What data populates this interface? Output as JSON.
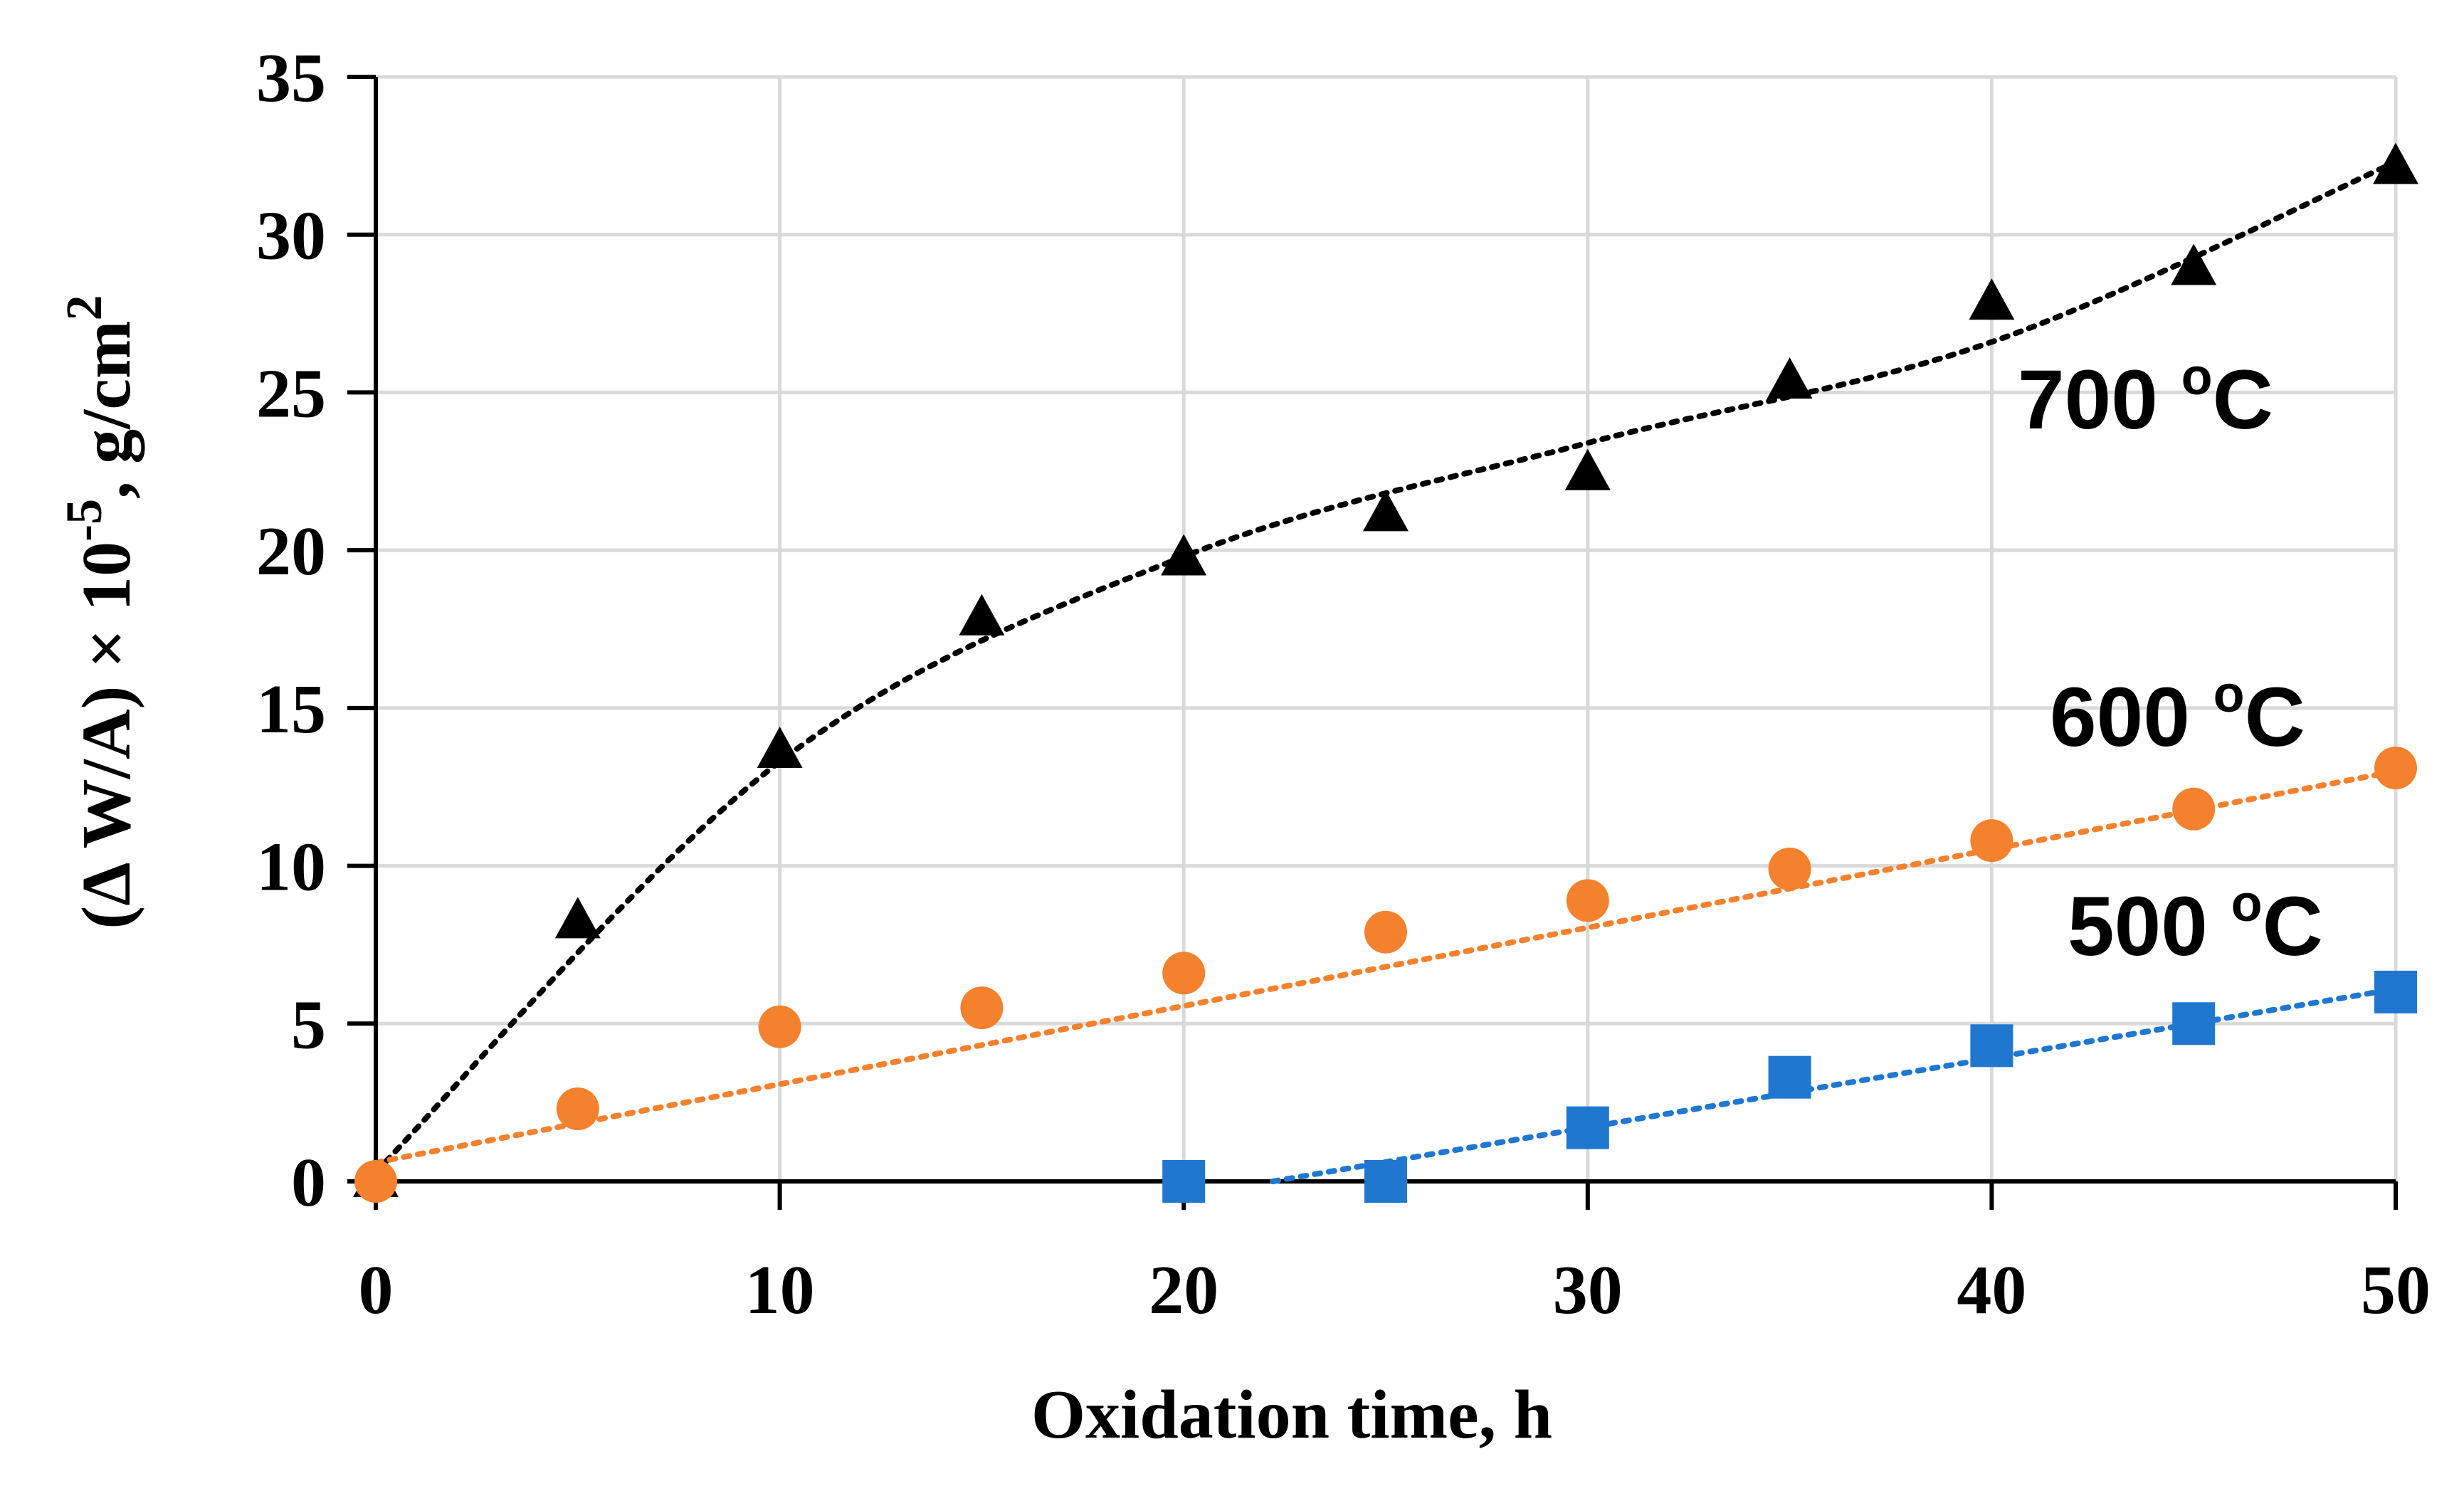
{
  "chart_data": {
    "type": "scatter",
    "xlabel": "Oxidation time, h",
    "ylabel": {
      "prefix": "(Δ W/A) × 10",
      "exp1": "-5",
      "mid": ", g/cm",
      "exp2": "2"
    },
    "xlim": [
      0,
      50
    ],
    "ylim": [
      0,
      35
    ],
    "xticks": [
      0,
      10,
      20,
      30,
      40,
      50
    ],
    "yticks": [
      0,
      5,
      10,
      15,
      20,
      25,
      30,
      35
    ],
    "grid": true,
    "series": [
      {
        "name": "700 oC",
        "label_main": "700 ",
        "label_sup": "o",
        "label_tail": "C",
        "marker": "triangle",
        "color": "#000000",
        "x": [
          0,
          5,
          10,
          15,
          20,
          25,
          30,
          35,
          40,
          45,
          50
        ],
        "y": [
          0,
          8.2,
          13.6,
          17.8,
          19.7,
          21.1,
          22.4,
          25.3,
          27.8,
          28.9,
          32.1
        ],
        "trend": "power",
        "trend_points": [
          [
            0,
            0.3
          ],
          [
            10,
            13.3
          ],
          [
            20,
            19.8
          ],
          [
            30,
            23.4
          ],
          [
            40,
            26.6
          ],
          [
            50,
            32.3
          ]
        ]
      },
      {
        "name": "600 oC",
        "label_main": "600 ",
        "label_sup": "o",
        "label_tail": "C",
        "marker": "circle",
        "color": "#F4812E",
        "x": [
          0,
          5,
          10,
          15,
          20,
          25,
          30,
          35,
          40,
          45,
          50
        ],
        "y": [
          0,
          2.3,
          4.9,
          5.5,
          6.6,
          7.9,
          8.9,
          9.9,
          10.8,
          11.8,
          13.1
        ],
        "trend": "linear",
        "trend_points": [
          [
            0,
            0.6
          ],
          [
            50,
            13.0
          ]
        ]
      },
      {
        "name": "500 oC",
        "label_main": "500 ",
        "label_sup": "o",
        "label_tail": "C",
        "marker": "square",
        "color": "#1F77D0",
        "x": [
          20,
          25,
          30,
          35,
          40,
          45,
          50
        ],
        "y": [
          0,
          0,
          1.7,
          3.3,
          4.3,
          5.0,
          6.0
        ],
        "trend": "linear",
        "trend_points": [
          [
            22.2,
            0
          ],
          [
            50,
            6.1
          ]
        ]
      }
    ]
  }
}
